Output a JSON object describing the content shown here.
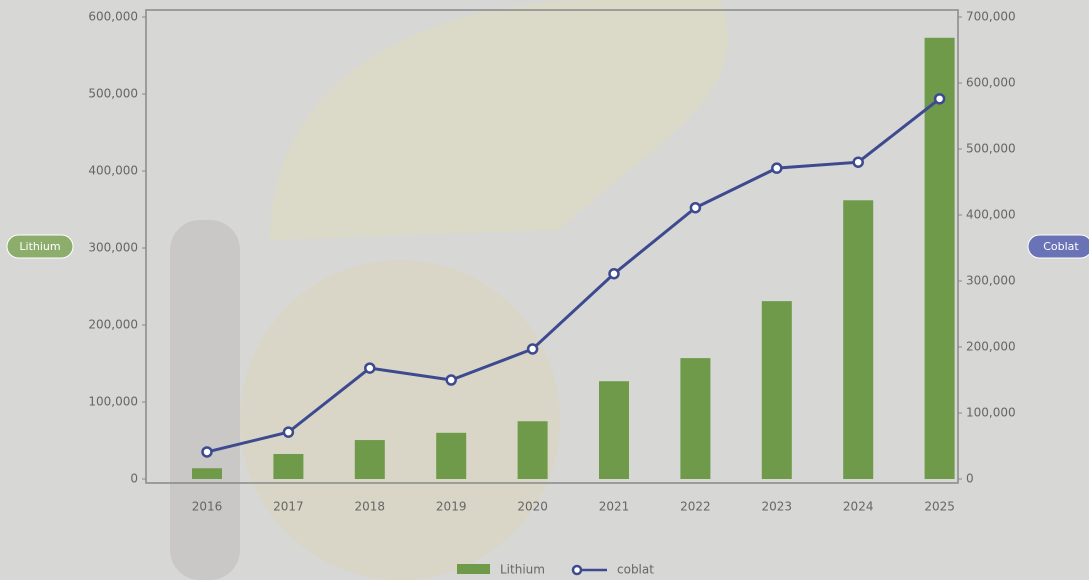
{
  "chart_data": {
    "type": "bar-line",
    "categories": [
      "2016",
      "2017",
      "2018",
      "2019",
      "2020",
      "2021",
      "2022",
      "2023",
      "2024",
      "2025"
    ],
    "series": [
      {
        "name": "Lithium",
        "color": "#6f9a4a",
        "type": "bar",
        "axis": "y",
        "values": [
          14000,
          32500,
          50600,
          60000,
          75000,
          127000,
          157000,
          231000,
          362000,
          573000
        ]
      },
      {
        "name": "coblat",
        "color": "#3d4a8f",
        "type": "line",
        "axis": "y2",
        "values": [
          41000,
          71000,
          168000,
          150000,
          197000,
          311000,
          411000,
          471000,
          480000,
          576000
        ]
      }
    ],
    "ylabel": "Lithium",
    "y2label": "Coblat",
    "ylim": [
      0,
      600000
    ],
    "yticks": [
      0,
      {
        "value": 100000,
        "label": "100,000"
      },
      {
        "value": 200000,
        "label": "200,000"
      },
      {
        "value": 300000,
        "label": "300,000"
      },
      {
        "value": 400000,
        "label": "400,000"
      },
      {
        "value": 500000,
        "label": "500,000"
      },
      {
        "value": 600000,
        "label": "600,000"
      }
    ],
    "y2lim": [
      0,
      700000
    ],
    "y2ticks": [
      0,
      {
        "value": 100000,
        "label": "100,000"
      },
      {
        "value": 200000,
        "label": "200,000"
      },
      {
        "value": 300000,
        "label": "300,000"
      },
      {
        "value": 400000,
        "label": "400,000"
      },
      {
        "value": 500000,
        "label": "500,000"
      },
      {
        "value": 600000,
        "label": "600,000"
      },
      {
        "value": 700000,
        "label": "700,000"
      }
    ],
    "legend": "bottom"
  }
}
